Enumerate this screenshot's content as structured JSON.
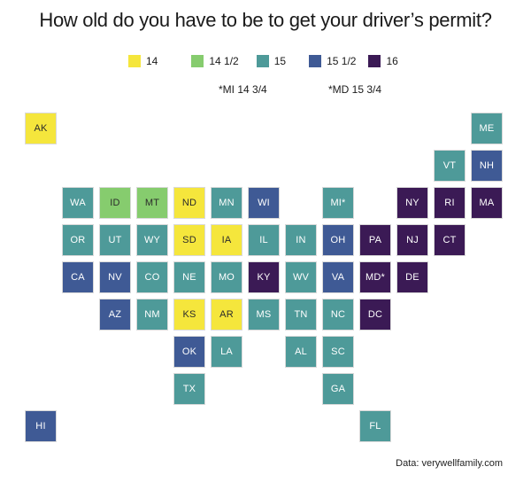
{
  "title": "How old do you have to be to get your driver’s permit?",
  "legend": [
    {
      "label": "14",
      "color": "#f5e63c"
    },
    {
      "label": "14 1/2",
      "color": "#86cc6e"
    },
    {
      "label": "15",
      "color": "#4e9a99"
    },
    {
      "label": "15 1/2",
      "color": "#3f5a95"
    },
    {
      "label": "16",
      "color": "#3b1a55"
    }
  ],
  "notes": {
    "mi": "*MI 14 3/4",
    "md": "*MD 15 3/4"
  },
  "source": "Data: verywellfamily.com",
  "states": [
    {
      "abbr": "AK",
      "age": "14",
      "col": 0,
      "row": 0
    },
    {
      "abbr": "ME",
      "age": "15",
      "col": 12,
      "row": 0
    },
    {
      "abbr": "VT",
      "age": "15",
      "col": 11,
      "row": 1
    },
    {
      "abbr": "NH",
      "age": "15 1/2",
      "col": 12,
      "row": 1
    },
    {
      "abbr": "WA",
      "age": "15",
      "col": 1,
      "row": 2
    },
    {
      "abbr": "ID",
      "age": "14 1/2",
      "col": 2,
      "row": 2
    },
    {
      "abbr": "MT",
      "age": "14 1/2",
      "col": 3,
      "row": 2
    },
    {
      "abbr": "ND",
      "age": "14",
      "col": 4,
      "row": 2
    },
    {
      "abbr": "MN",
      "age": "15",
      "col": 5,
      "row": 2
    },
    {
      "abbr": "WI",
      "age": "15 1/2",
      "col": 6,
      "row": 2
    },
    {
      "abbr": "MI*",
      "age": "15",
      "col": 8,
      "row": 2
    },
    {
      "abbr": "NY",
      "age": "16",
      "col": 10,
      "row": 2
    },
    {
      "abbr": "RI",
      "age": "16",
      "col": 11,
      "row": 2
    },
    {
      "abbr": "MA",
      "age": "16",
      "col": 12,
      "row": 2
    },
    {
      "abbr": "OR",
      "age": "15",
      "col": 1,
      "row": 3
    },
    {
      "abbr": "UT",
      "age": "15",
      "col": 2,
      "row": 3
    },
    {
      "abbr": "WY",
      "age": "15",
      "col": 3,
      "row": 3
    },
    {
      "abbr": "SD",
      "age": "14",
      "col": 4,
      "row": 3
    },
    {
      "abbr": "IA",
      "age": "14",
      "col": 5,
      "row": 3
    },
    {
      "abbr": "IL",
      "age": "15",
      "col": 6,
      "row": 3
    },
    {
      "abbr": "IN",
      "age": "15",
      "col": 7,
      "row": 3
    },
    {
      "abbr": "OH",
      "age": "15 1/2",
      "col": 8,
      "row": 3
    },
    {
      "abbr": "PA",
      "age": "16",
      "col": 9,
      "row": 3
    },
    {
      "abbr": "NJ",
      "age": "16",
      "col": 10,
      "row": 3
    },
    {
      "abbr": "CT",
      "age": "16",
      "col": 11,
      "row": 3
    },
    {
      "abbr": "CA",
      "age": "15 1/2",
      "col": 1,
      "row": 4
    },
    {
      "abbr": "NV",
      "age": "15 1/2",
      "col": 2,
      "row": 4
    },
    {
      "abbr": "CO",
      "age": "15",
      "col": 3,
      "row": 4
    },
    {
      "abbr": "NE",
      "age": "15",
      "col": 4,
      "row": 4
    },
    {
      "abbr": "MO",
      "age": "15",
      "col": 5,
      "row": 4
    },
    {
      "abbr": "KY",
      "age": "16",
      "col": 6,
      "row": 4
    },
    {
      "abbr": "WV",
      "age": "15",
      "col": 7,
      "row": 4
    },
    {
      "abbr": "VA",
      "age": "15 1/2",
      "col": 8,
      "row": 4
    },
    {
      "abbr": "MD*",
      "age": "16",
      "col": 9,
      "row": 4
    },
    {
      "abbr": "DE",
      "age": "16",
      "col": 10,
      "row": 4
    },
    {
      "abbr": "AZ",
      "age": "15 1/2",
      "col": 2,
      "row": 5
    },
    {
      "abbr": "NM",
      "age": "15",
      "col": 3,
      "row": 5
    },
    {
      "abbr": "KS",
      "age": "14",
      "col": 4,
      "row": 5
    },
    {
      "abbr": "AR",
      "age": "14",
      "col": 5,
      "row": 5
    },
    {
      "abbr": "MS",
      "age": "15",
      "col": 6,
      "row": 5
    },
    {
      "abbr": "TN",
      "age": "15",
      "col": 7,
      "row": 5
    },
    {
      "abbr": "NC",
      "age": "15",
      "col": 8,
      "row": 5
    },
    {
      "abbr": "DC",
      "age": "16",
      "col": 9,
      "row": 5
    },
    {
      "abbr": "OK",
      "age": "15 1/2",
      "col": 4,
      "row": 6
    },
    {
      "abbr": "LA",
      "age": "15",
      "col": 5,
      "row": 6
    },
    {
      "abbr": "AL",
      "age": "15",
      "col": 7,
      "row": 6
    },
    {
      "abbr": "SC",
      "age": "15",
      "col": 8,
      "row": 6
    },
    {
      "abbr": "TX",
      "age": "15",
      "col": 4,
      "row": 7
    },
    {
      "abbr": "GA",
      "age": "15",
      "col": 8,
      "row": 7
    },
    {
      "abbr": "HI",
      "age": "15 1/2",
      "col": 0,
      "row": 8
    },
    {
      "abbr": "FL",
      "age": "15",
      "col": 9,
      "row": 8
    }
  ]
}
